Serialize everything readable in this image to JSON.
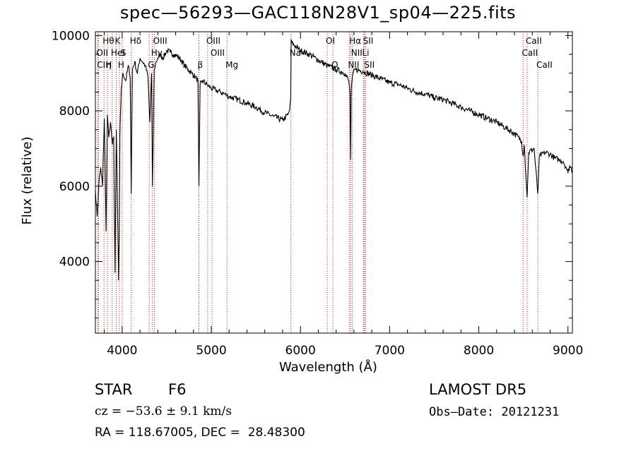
{
  "chart_data": {
    "type": "line",
    "title": "spec—56293—GAC118N28V1_sp04—225.fits",
    "xlabel": "Wavelength (Å)",
    "ylabel": "Flux (relative)",
    "xlim": [
      3700,
      9050
    ],
    "ylim": [
      2100,
      10100
    ],
    "x_ticks": [
      4000,
      5000,
      6000,
      7000,
      8000,
      9000
    ],
    "y_ticks": [
      4000,
      6000,
      8000,
      10000
    ],
    "grid": false,
    "series": [
      {
        "x": [
          3700,
          3720,
          3740,
          3760,
          3780,
          3800,
          3820,
          3835,
          3850,
          3870,
          3890,
          3905,
          3920,
          3935,
          3950,
          3960,
          3968,
          3975,
          3990,
          4010,
          4040,
          4070,
          4090,
          4102,
          4115,
          4140,
          4170,
          4200,
          4230,
          4260,
          4290,
          4310,
          4330,
          4340,
          4360,
          4380,
          4400,
          4430,
          4460,
          4500,
          4540,
          4580,
          4620,
          4660,
          4700,
          4740,
          4780,
          4820,
          4850,
          4861,
          4875,
          4900,
          4950,
          5000,
          5050,
          5100,
          5150,
          5175,
          5200,
          5300,
          5400,
          5500,
          5600,
          5700,
          5800,
          5860,
          5880,
          5890,
          5896,
          5905,
          5950,
          6000,
          6100,
          6200,
          6300,
          6400,
          6500,
          6540,
          6555,
          6563,
          6570,
          6590,
          6620,
          6700,
          6800,
          6900,
          7000,
          7100,
          7200,
          7300,
          7400,
          7500,
          7600,
          7700,
          7800,
          7900,
          8000,
          8100,
          8200,
          8300,
          8400,
          8480,
          8498,
          8510,
          8542,
          8560,
          8620,
          8662,
          8680,
          8750,
          8800,
          8850,
          8900,
          8950,
          8980,
          9000,
          9020,
          9050
        ],
        "y": [
          5900,
          5200,
          6100,
          6500,
          6000,
          7800,
          4800,
          7900,
          7300,
          7700,
          7100,
          7300,
          3700,
          7500,
          5200,
          3500,
          4800,
          7400,
          8600,
          9000,
          8800,
          9200,
          8900,
          5800,
          9100,
          9300,
          9000,
          9400,
          9300,
          9200,
          8900,
          7700,
          9000,
          6000,
          9100,
          9300,
          9400,
          9500,
          9400,
          9600,
          9550,
          9500,
          9450,
          9350,
          9200,
          9100,
          9000,
          8900,
          8800,
          6000,
          8700,
          8800,
          8700,
          8600,
          8550,
          8500,
          8450,
          8400,
          8380,
          8300,
          8200,
          8100,
          7950,
          7850,
          7750,
          7900,
          8050,
          8300,
          9900,
          9800,
          9700,
          9600,
          9500,
          9350,
          9200,
          9100,
          9000,
          8800,
          8500,
          6700,
          8600,
          9000,
          9100,
          9050,
          8950,
          8850,
          8750,
          8700,
          8600,
          8500,
          8450,
          8350,
          8300,
          8200,
          8100,
          8000,
          7900,
          7800,
          7700,
          7550,
          7400,
          7200,
          6800,
          7100,
          5700,
          6900,
          7000,
          5800,
          6800,
          6900,
          6850,
          6750,
          6700,
          6650,
          6500,
          6350,
          6550,
          6400
        ]
      }
    ],
    "line_labels": [
      {
        "text": "Hθ",
        "x": 3797,
        "row": 1
      },
      {
        "text": "K",
        "x": 3934,
        "row": 1
      },
      {
        "text": "Hδ",
        "x": 4102,
        "row": 1
      },
      {
        "text": "OIII",
        "x": 4363,
        "row": 1
      },
      {
        "text": "OIII",
        "x": 4959,
        "row": 1
      },
      {
        "text": "OI",
        "x": 6300,
        "row": 1
      },
      {
        "text": "Hα",
        "x": 6563,
        "row": 1
      },
      {
        "text": "SII",
        "x": 6717,
        "row": 1
      },
      {
        "text": "CaII",
        "x": 8542,
        "row": 1
      },
      {
        "text": "OII",
        "x": 3727,
        "row": 2
      },
      {
        "text": "HeI",
        "x": 3889,
        "row": 2
      },
      {
        "text": "S",
        "x": 4000,
        "row": 2
      },
      {
        "text": "Hγ",
        "x": 4340,
        "row": 2
      },
      {
        "text": "OIII",
        "x": 5007,
        "row": 2
      },
      {
        "text": "Na",
        "x": 5893,
        "row": 2
      },
      {
        "text": "NII",
        "x": 6583,
        "row": 2
      },
      {
        "text": "Li",
        "x": 6708,
        "row": 2
      },
      {
        "text": "CaII",
        "x": 8498,
        "row": 2
      },
      {
        "text": "CIH",
        "x": 3734,
        "row": 3
      },
      {
        "text": "η",
        "x": 3835,
        "row": 3
      },
      {
        "text": "H",
        "x": 3968,
        "row": 3
      },
      {
        "text": "G",
        "x": 4304,
        "row": 3
      },
      {
        "text": "β",
        "x": 4861,
        "row": 3
      },
      {
        "text": "Mg",
        "x": 5175,
        "row": 3
      },
      {
        "text": "O",
        "x": 6364,
        "row": 3
      },
      {
        "text": "NII",
        "x": 6548,
        "row": 3
      },
      {
        "text": "SII",
        "x": 6731,
        "row": 3
      },
      {
        "text": "CaII",
        "x": 8662,
        "row": 3
      }
    ],
    "line_positions": [
      3727,
      3734,
      3797,
      3835,
      3889,
      3934,
      3968,
      4000,
      4102,
      4304,
      4340,
      4363,
      4861,
      4959,
      5007,
      5175,
      5893,
      6300,
      6364,
      6548,
      6563,
      6583,
      6708,
      6717,
      6731,
      8498,
      8542,
      8662
    ]
  },
  "info": {
    "object_class": "STAR",
    "subclass": "F6",
    "survey": "LAMOST DR5",
    "cz": "cz = −53.6 ± 9.1 km/s",
    "obs_date": "Obs—Date: 20121231",
    "coords": "RA = 118.67005, DEC =  28.48300"
  },
  "colors": {
    "spectrum": "#000000",
    "line_markers": "#b22222",
    "axes": "#000000"
  }
}
